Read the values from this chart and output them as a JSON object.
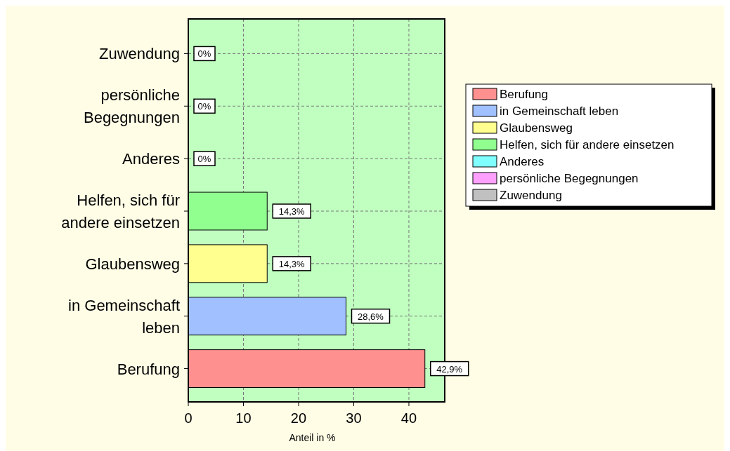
{
  "chart_data": {
    "type": "bar",
    "orientation": "horizontal",
    "stacked": true,
    "categories": [
      "Zuwendung",
      "persönliche Begegnungen",
      "Anderes",
      "Helfen, sich für andere einsetzen",
      "Glaubensweg",
      "in Gemeinschaft leben",
      "Berufung"
    ],
    "series": [
      {
        "name": "Berufung",
        "color": "#ff9090",
        "values": [
          null,
          null,
          null,
          null,
          null,
          null,
          42.9
        ],
        "value_labels": [
          null,
          null,
          null,
          null,
          null,
          null,
          "42,9%"
        ]
      },
      {
        "name": "in Gemeinschaft leben",
        "color": "#a0c0ff",
        "values": [
          null,
          null,
          null,
          null,
          null,
          28.6,
          null
        ],
        "value_labels": [
          null,
          null,
          null,
          null,
          null,
          "28,6%",
          null
        ]
      },
      {
        "name": "Glaubensweg",
        "color": "#ffff90",
        "values": [
          null,
          null,
          null,
          null,
          14.3,
          null,
          null
        ],
        "value_labels": [
          null,
          null,
          null,
          null,
          "14,3%",
          null,
          null
        ]
      },
      {
        "name": "Helfen, sich für andere einsetzen",
        "color": "#90ff90",
        "values": [
          null,
          null,
          null,
          14.3,
          null,
          null,
          null
        ],
        "value_labels": [
          null,
          null,
          null,
          "14,3%",
          null,
          null,
          null
        ]
      },
      {
        "name": "Anderes",
        "color": "#80ffff",
        "values": [
          null,
          null,
          0,
          null,
          null,
          null,
          null
        ],
        "value_labels": [
          null,
          null,
          "0%",
          null,
          null,
          null,
          null
        ]
      },
      {
        "name": "persönliche Begegnungen",
        "color": "#ffa0ff",
        "values": [
          null,
          0,
          null,
          null,
          null,
          null,
          null
        ],
        "value_labels": [
          null,
          "0%",
          null,
          null,
          null,
          null,
          null
        ]
      },
      {
        "name": "Zuwendung",
        "color": "#c0c0c0",
        "values": [
          0,
          null,
          null,
          null,
          null,
          null,
          null
        ],
        "value_labels": [
          "0%",
          null,
          null,
          null,
          null,
          null,
          null
        ]
      }
    ],
    "xlim": [
      0,
      46.5
    ],
    "xticks": [
      0,
      10,
      20,
      30,
      40
    ],
    "xlabel": "Anteil in %",
    "grid": true,
    "legend": "right"
  }
}
